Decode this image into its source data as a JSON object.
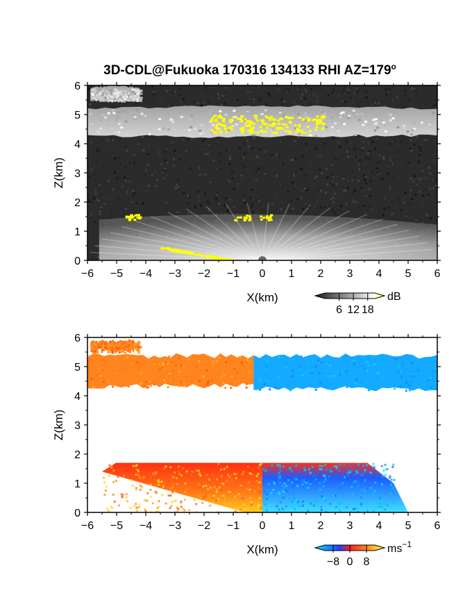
{
  "figure": {
    "title": "3D-CDL@Fukuoka 170316 134133 RHI AZ=179",
    "title_sup": "o"
  },
  "chart_data": [
    {
      "type": "heatmap",
      "quantity": "backscatter intensity",
      "xlabel": "X(km)",
      "ylabel": "Z(km)",
      "xlim": [
        -6,
        6
      ],
      "ylim": [
        0,
        6
      ],
      "xticks": [
        -6,
        -5,
        -4,
        -3,
        -2,
        -1,
        0,
        1,
        2,
        3,
        4,
        5,
        6
      ],
      "yticks": [
        0,
        1,
        2,
        3,
        4,
        5,
        6
      ],
      "tick_labels_x": [
        "−6",
        "−5",
        "−4",
        "−3",
        "−2",
        "−1",
        "0",
        "1",
        "2",
        "3",
        "4",
        "5",
        "6"
      ],
      "tick_labels_y": [
        "0",
        "1",
        "2",
        "3",
        "4",
        "5",
        "6"
      ],
      "background_color": "#2b2b2b",
      "colorbar": {
        "unit": "dB",
        "ticks": [
          6,
          12,
          18
        ],
        "tick_labels": [
          "6",
          "12",
          "18"
        ],
        "colors": [
          "#1a1a1a",
          "#ffffff",
          "#ffff00"
        ]
      },
      "layers": [
        {
          "type": "cloud_layer",
          "z_bottom_km": 4.3,
          "z_top_km": 5.2,
          "x_range_km": [
            -6,
            6
          ],
          "intensity_db": 8
        },
        {
          "type": "cloud_layer",
          "z_bottom_km": 5.5,
          "z_top_km": 5.9,
          "x_range_km": [
            -5.9,
            -4.2
          ],
          "intensity_db": 6
        },
        {
          "type": "boundary_layer",
          "z_top_km": 1.7,
          "x_range_km": [
            -5.6,
            6
          ],
          "intensity_db": 10
        }
      ],
      "highlight_regions": [
        {
          "x_range_km": [
            -1.8,
            2.1
          ],
          "z_range_km": [
            4.4,
            5.0
          ],
          "intensity_db": 18
        },
        {
          "x_range_km": [
            -4.7,
            -4.2
          ],
          "z_range_km": [
            1.4,
            1.6
          ],
          "intensity_db": 18
        },
        {
          "x_range_km": [
            -1.2,
            0.4
          ],
          "z_range_km": [
            1.4,
            1.6
          ],
          "intensity_db": 18
        },
        {
          "x_range_km": [
            -3.5,
            -0.8
          ],
          "z_range_km": [
            0.0,
            0.5
          ],
          "intensity_db": 18
        }
      ]
    },
    {
      "type": "heatmap",
      "quantity": "radial velocity",
      "xlabel": "X(km)",
      "ylabel": "Z(km)",
      "xlim": [
        -6,
        6
      ],
      "ylim": [
        0,
        6
      ],
      "xticks": [
        -6,
        -5,
        -4,
        -3,
        -2,
        -1,
        0,
        1,
        2,
        3,
        4,
        5,
        6
      ],
      "yticks": [
        0,
        1,
        2,
        3,
        4,
        5,
        6
      ],
      "tick_labels_x": [
        "−6",
        "−5",
        "−4",
        "−3",
        "−2",
        "−1",
        "0",
        "1",
        "2",
        "3",
        "4",
        "5",
        "6"
      ],
      "tick_labels_y": [
        "0",
        "1",
        "2",
        "3",
        "4",
        "5",
        "6"
      ],
      "background_color": "#ffffff",
      "colorbar": {
        "unit": "ms",
        "unit_sup": "−1",
        "ticks": [
          -8,
          0,
          8
        ],
        "tick_labels": [
          "−8",
          "0",
          "8"
        ],
        "colors": [
          "#00e5ff",
          "#2040ff",
          "#ff2020",
          "#ffff30"
        ]
      },
      "regions": [
        {
          "x_range_km": [
            -6,
            -0.3
          ],
          "z_range_km": [
            4.3,
            5.4
          ],
          "velocity_ms": 4
        },
        {
          "x_range_km": [
            -5.9,
            -4.2
          ],
          "z_range_km": [
            5.5,
            5.9
          ],
          "velocity_ms": 4
        },
        {
          "x_range_km": [
            -0.3,
            6
          ],
          "z_range_km": [
            4.2,
            5.4
          ],
          "velocity_ms": -5
        },
        {
          "x_range_km": [
            -5.5,
            0
          ],
          "z_range_km": [
            0.0,
            1.7
          ],
          "velocity_ms": 5
        },
        {
          "x_range_km": [
            0,
            4.5
          ],
          "z_range_km": [
            0.0,
            1.7
          ],
          "velocity_ms": -5
        }
      ]
    }
  ]
}
